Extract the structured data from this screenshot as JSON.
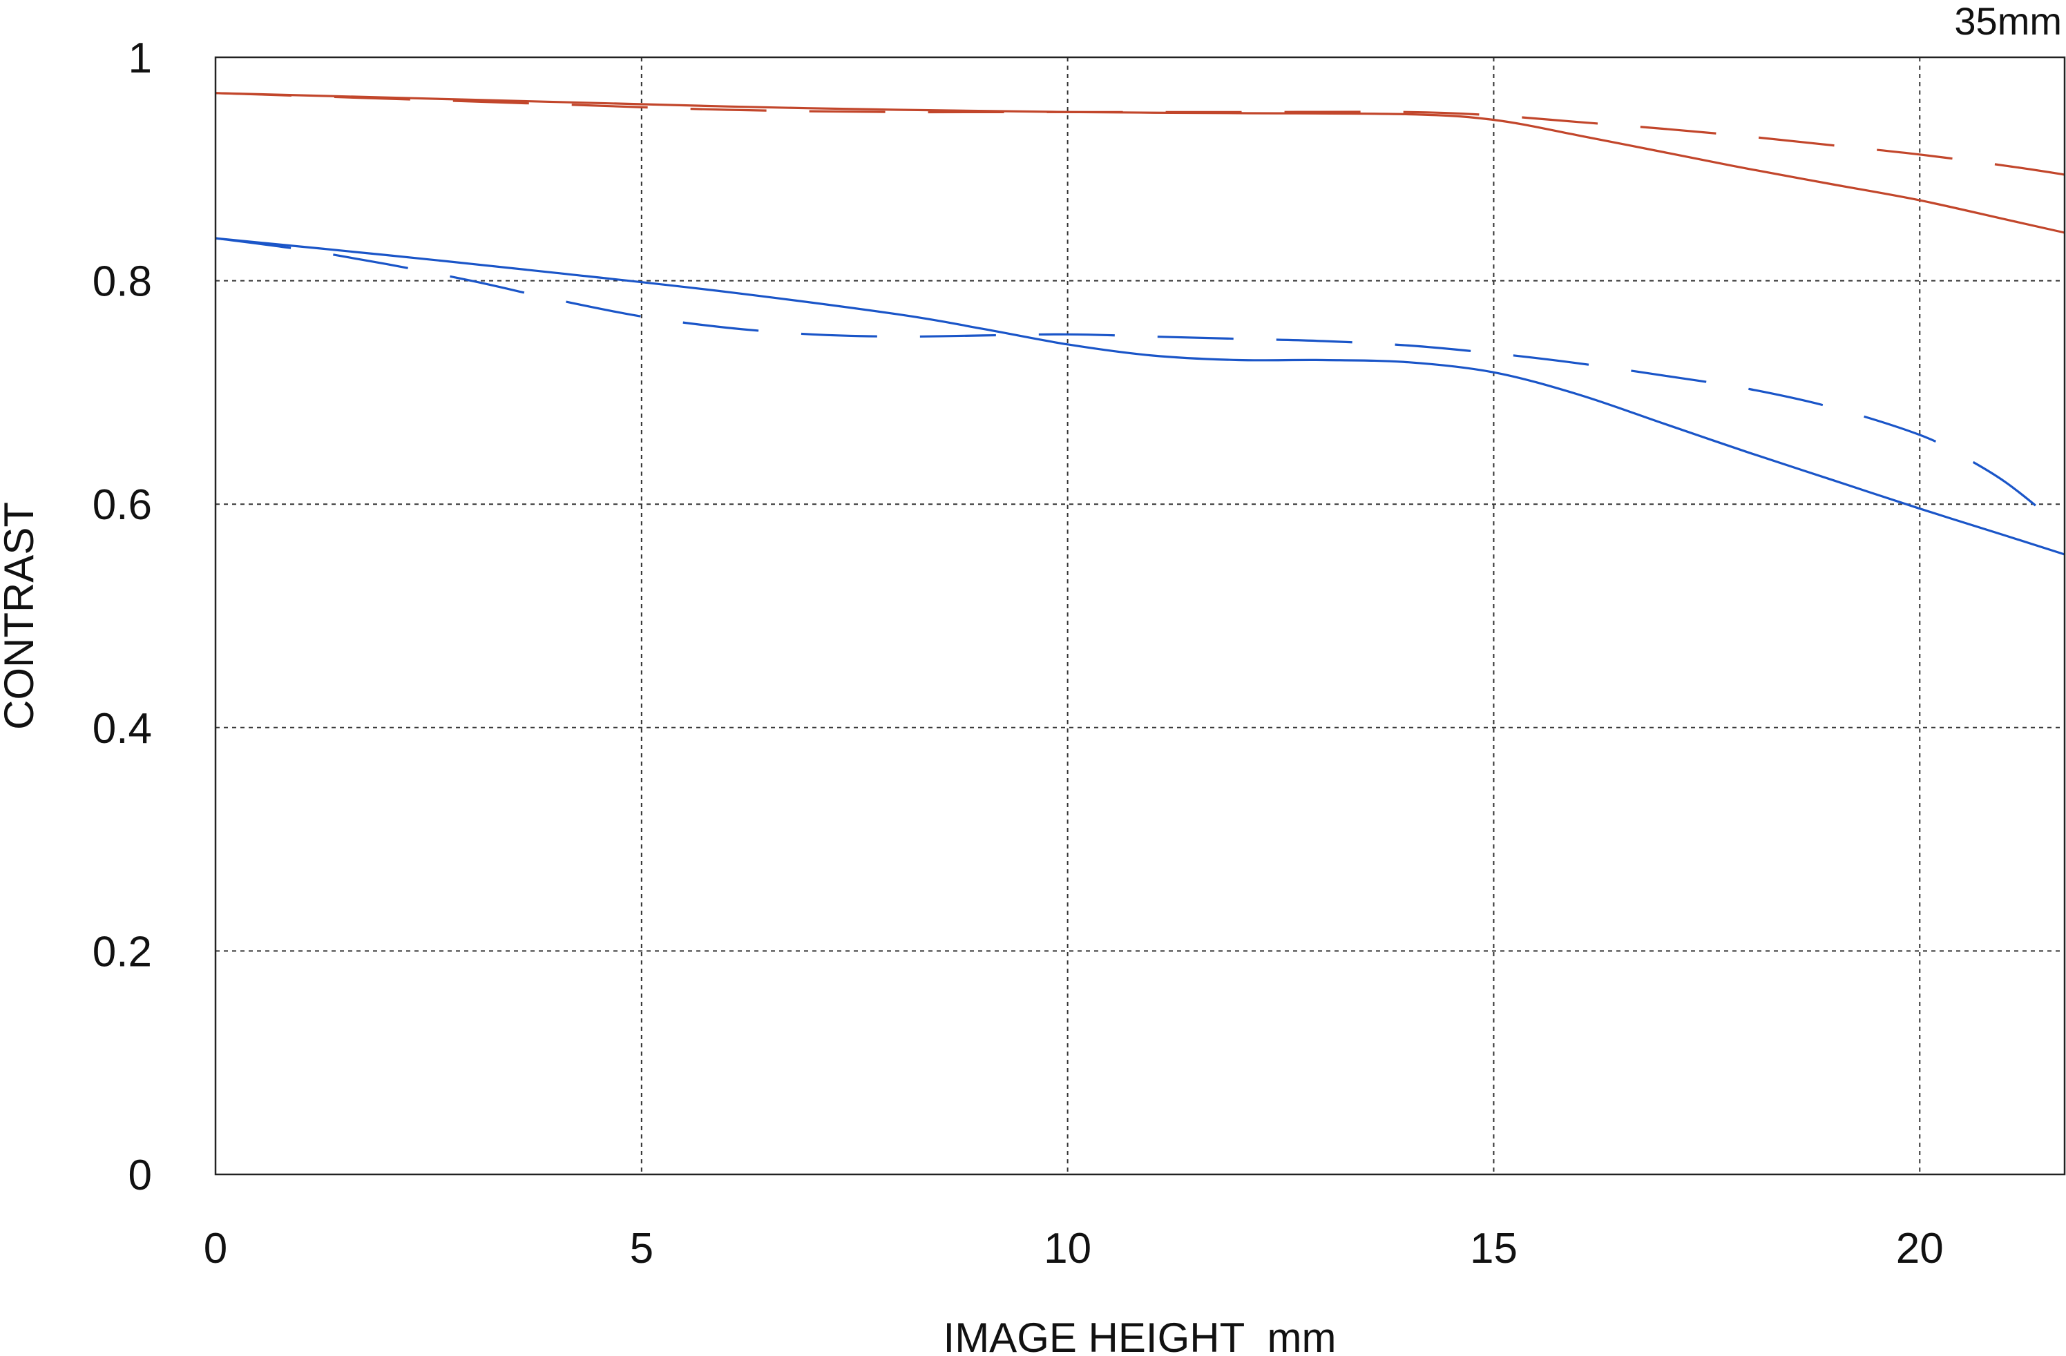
{
  "chart_data": {
    "type": "line",
    "title": "35mm",
    "xlabel": "IMAGE HEIGHT  mm",
    "ylabel": "CONTRAST",
    "xlim": [
      0,
      21.7
    ],
    "ylim": [
      0,
      1
    ],
    "x_ticks": [
      0,
      5,
      10,
      15,
      20
    ],
    "x_tick_labels": [
      "0",
      "5",
      "10",
      "15",
      "20"
    ],
    "y_ticks": [
      0,
      0.2,
      0.4,
      0.6,
      0.8,
      1
    ],
    "y_tick_labels": [
      "0",
      "0.2",
      "0.4",
      "0.6",
      "0.8",
      "1"
    ],
    "grid": true,
    "legend": "none",
    "colors": {
      "red": "#c2462b",
      "blue": "#1a55c8"
    },
    "series": [
      {
        "color": "#c2462b",
        "style": "solid",
        "x": [
          0,
          2,
          4,
          6,
          8,
          10,
          12,
          14,
          15,
          16,
          17,
          18,
          19,
          20,
          21,
          21.7
        ],
        "y": [
          0.968,
          0.964,
          0.96,
          0.956,
          0.953,
          0.951,
          0.95,
          0.949,
          0.944,
          0.93,
          0.915,
          0.9,
          0.886,
          0.872,
          0.855,
          0.843
        ]
      },
      {
        "color": "#c2462b",
        "style": "dashed",
        "x": [
          0,
          2,
          4,
          6,
          8,
          10,
          12,
          14,
          15,
          16,
          17,
          18,
          19,
          20,
          21,
          21.7
        ],
        "y": [
          0.968,
          0.963,
          0.958,
          0.953,
          0.951,
          0.951,
          0.951,
          0.951,
          0.948,
          0.942,
          0.936,
          0.929,
          0.921,
          0.913,
          0.903,
          0.895
        ]
      },
      {
        "color": "#1a55c8",
        "style": "solid",
        "x": [
          0,
          2,
          4,
          6,
          8,
          9,
          10,
          11,
          12,
          13,
          14,
          15,
          16,
          17,
          18,
          19,
          20,
          21,
          21.7
        ],
        "y": [
          0.838,
          0.823,
          0.807,
          0.79,
          0.77,
          0.757,
          0.743,
          0.733,
          0.729,
          0.729,
          0.727,
          0.718,
          0.698,
          0.672,
          0.646,
          0.621,
          0.596,
          0.572,
          0.555
        ]
      },
      {
        "color": "#1a55c8",
        "style": "dashed",
        "x": [
          0,
          1,
          2,
          3,
          4,
          5,
          6,
          7,
          8,
          9,
          10,
          11,
          12,
          13,
          14,
          15,
          16,
          17,
          18,
          19,
          20,
          20.5,
          21,
          21.5,
          21.7
        ],
        "y": [
          0.838,
          0.828,
          0.815,
          0.8,
          0.783,
          0.768,
          0.758,
          0.752,
          0.75,
          0.751,
          0.752,
          0.75,
          0.748,
          0.746,
          0.742,
          0.735,
          0.726,
          0.715,
          0.703,
          0.686,
          0.662,
          0.643,
          0.62,
          0.59,
          0.577
        ]
      }
    ]
  }
}
